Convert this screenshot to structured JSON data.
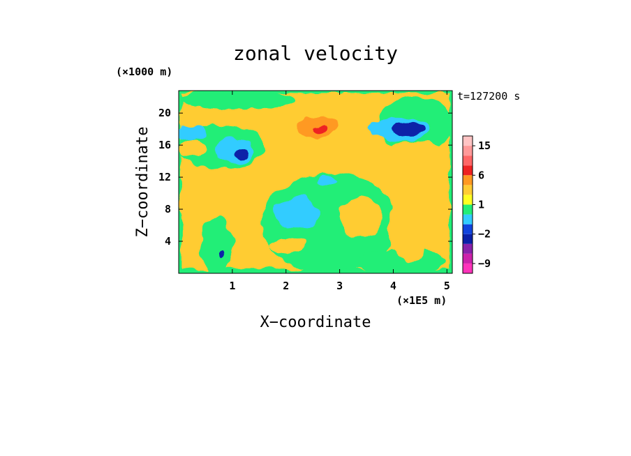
{
  "chart_data": {
    "type": "heatmap",
    "title": "zonal velocity",
    "xlabel": "X−coordinate",
    "ylabel": "Z−coordinate",
    "x_unit": "(×1E5 m)",
    "y_unit": "(×1000 m)",
    "time_label": "t=127200 s",
    "xlim": [
      0.0,
      5.1
    ],
    "ylim": [
      0.0,
      22.8
    ],
    "x_ticks": [
      1,
      2,
      3,
      4,
      5
    ],
    "y_ticks": [
      4,
      8,
      12,
      16,
      20
    ],
    "colorbar": {
      "levels": [
        -12,
        -9,
        -6,
        -3,
        -2,
        -1,
        0,
        1,
        2,
        3,
        6,
        9,
        12,
        15,
        18
      ],
      "colors": [
        "#ff33bb",
        "#cc22aa",
        "#8822aa",
        "#0a20a8",
        "#1144dd",
        "#33ccff",
        "#22ee77",
        "#ffff22",
        "#ffcc33",
        "#ff9922",
        "#ee2222",
        "#ff6666",
        "#ff9999",
        "#ffc4c4"
      ],
      "tick_labels": [
        {
          "value": 15,
          "text": "15"
        },
        {
          "value": 6,
          "text": "6"
        },
        {
          "value": 1,
          "text": "1"
        },
        {
          "value": -2,
          "text": "−2"
        },
        {
          "value": -9,
          "text": "−9"
        }
      ]
    },
    "regions": [
      {
        "value": 2.5,
        "x": [
          0.05,
          5.05
        ],
        "z": [
          0.5,
          22.5
        ],
        "label": "yellow background"
      },
      {
        "value": 0.5,
        "x": [
          1.55,
          4.1
        ],
        "z": [
          0.0,
          12.5
        ],
        "label": "green lower centre"
      },
      {
        "value": 0.5,
        "x": [
          0.0,
          1.6
        ],
        "z": [
          13.0,
          18.5
        ]
      },
      {
        "value": 0.5,
        "x": [
          3.7,
          5.1
        ],
        "z": [
          15.0,
          22.0
        ]
      },
      {
        "value": 0.5,
        "x": [
          0.0,
          2.2
        ],
        "z": [
          20.5,
          22.8
        ]
      },
      {
        "value": 0.5,
        "x": [
          0.4,
          1.0
        ],
        "z": [
          0.0,
          7.0
        ]
      },
      {
        "value": 0.5,
        "x": [
          3.3,
          5.0
        ],
        "z": [
          0.0,
          3.0
        ]
      },
      {
        "value": 2.5,
        "x": [
          3.0,
          3.8
        ],
        "z": [
          4.5,
          9.5
        ]
      },
      {
        "value": 2.5,
        "x": [
          3.9,
          4.7
        ],
        "z": [
          1.5,
          9.0
        ]
      },
      {
        "value": -0.5,
        "x": [
          1.8,
          2.6
        ],
        "z": [
          5.5,
          9.5
        ]
      },
      {
        "value": -0.5,
        "x": [
          2.6,
          2.95
        ],
        "z": [
          11.0,
          12.2
        ]
      },
      {
        "value": -0.5,
        "x": [
          0.7,
          1.4
        ],
        "z": [
          13.5,
          17.0
        ]
      },
      {
        "value": -0.5,
        "x": [
          0.0,
          0.5
        ],
        "z": [
          16.5,
          18.5
        ]
      },
      {
        "value": -0.5,
        "x": [
          3.5,
          4.7
        ],
        "z": [
          16.5,
          19.5
        ]
      },
      {
        "value": -2.5,
        "x": [
          1.05,
          1.3
        ],
        "z": [
          14.2,
          15.8
        ]
      },
      {
        "value": -2.5,
        "x": [
          4.0,
          4.6
        ],
        "z": [
          17.2,
          18.8
        ]
      },
      {
        "value": -2.5,
        "x": [
          0.75,
          0.85
        ],
        "z": [
          1.8,
          2.7
        ]
      },
      {
        "value": 4.5,
        "x": [
          2.2,
          3.0
        ],
        "z": [
          17.0,
          19.5
        ]
      },
      {
        "value": 7.5,
        "x": [
          2.5,
          2.8
        ],
        "z": [
          17.6,
          18.6
        ]
      },
      {
        "value": 2.5,
        "x": [
          0.0,
          0.5
        ],
        "z": [
          14.5,
          16.5
        ]
      },
      {
        "value": 2.5,
        "x": [
          3.9,
          5.0
        ],
        "z": [
          13.5,
          16.5
        ]
      },
      {
        "value": 2.5,
        "x": [
          1.6,
          2.3
        ],
        "z": [
          15.5,
          17.5
        ]
      },
      {
        "value": 2.5,
        "x": [
          1.7,
          2.4
        ],
        "z": [
          2.5,
          4.5
        ]
      }
    ]
  }
}
